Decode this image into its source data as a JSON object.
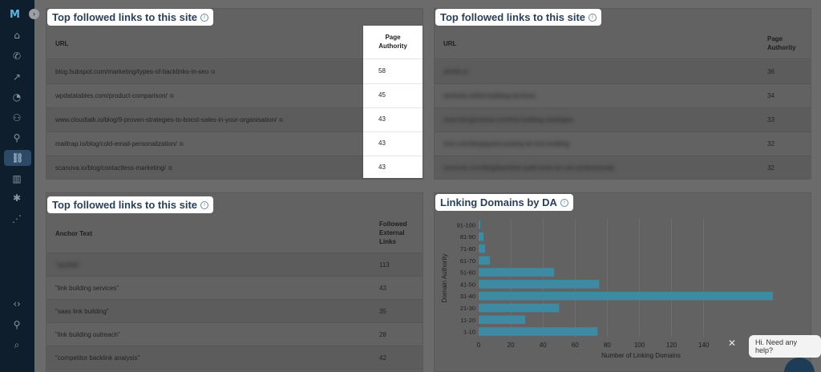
{
  "app": {
    "logo": "M",
    "collapse_symbol": "›"
  },
  "sidebar": {
    "icons": [
      {
        "name": "home-icon",
        "glyph": "⌂",
        "badge": false
      },
      {
        "name": "megaphone-icon",
        "glyph": "✆",
        "badge": true
      },
      {
        "name": "trend-icon",
        "glyph": "↗",
        "badge": false
      },
      {
        "name": "pie-chart-icon",
        "glyph": "◔",
        "badge": false
      },
      {
        "name": "users-icon",
        "glyph": "⚇",
        "badge": false
      },
      {
        "name": "search-zoom-icon",
        "glyph": "⚲",
        "badge": false
      },
      {
        "name": "link-icon",
        "glyph": "⛓",
        "badge": false,
        "active": true
      },
      {
        "name": "bar-chart-icon",
        "glyph": "▥",
        "badge": true
      },
      {
        "name": "bug-icon",
        "glyph": "✱",
        "badge": true
      },
      {
        "name": "signal-icon",
        "glyph": "⋰",
        "badge": true
      },
      {
        "name": "code-icon",
        "glyph": "‹›",
        "badge": true
      },
      {
        "name": "location-pin-icon",
        "glyph": "⚲",
        "badge": false
      },
      {
        "name": "search-icon",
        "glyph": "⌕",
        "badge": false
      }
    ]
  },
  "card1": {
    "title": "Top followed links to this site",
    "col_url": "URL",
    "col_pa_line1": "Page",
    "col_pa_line2": "Authority",
    "rows": [
      {
        "url": "blog.hubspot.com/marketing/types-of-backlinks-in-seo",
        "pa": "58"
      },
      {
        "url": "wpdatatables.com/product-comparison/",
        "pa": "45"
      },
      {
        "url": "www.cloudtalk.io/blog/9-proven-strategies-to-boost-sales-in-your-organisation/",
        "pa": "43"
      },
      {
        "url": "mailtrap.io/blog/cold-email-personalization/",
        "pa": "43"
      },
      {
        "url": "scanova.io/blog/contactless-marketing/",
        "pa": "43"
      }
    ]
  },
  "card2": {
    "title": "Top followed links to this site",
    "col_url": "URL",
    "col_pa_line1": "Page",
    "col_pa_line2": "Authority",
    "rows": [
      {
        "url": "ahrefs.io",
        "pa": "36"
      },
      {
        "url": "seotools.io/link-building-services",
        "pa": "34"
      },
      {
        "url": "searchengineland.com/link-building-strategies",
        "pa": "33"
      },
      {
        "url": "moz.com/blog/guest-posting-for-link-building",
        "pa": "32"
      },
      {
        "url": "semrush.com/blog/backlink-audit-tools-for-seo-professionals",
        "pa": "32"
      }
    ]
  },
  "card3": {
    "title": "Top followed links to this site",
    "col_anchor": "Anchor Text",
    "col_links_line1": "Followed",
    "col_links_line2": "External",
    "col_links_line3": "Links",
    "rows": [
      {
        "anchor": "\"spotlak\"",
        "links": "113",
        "blurred": true
      },
      {
        "anchor": "\"link building services\"",
        "links": "43",
        "blurred": false
      },
      {
        "anchor": "\"saas link building\"",
        "links": "35",
        "blurred": false
      },
      {
        "anchor": "\"link building outreach\"",
        "links": "28",
        "blurred": false
      },
      {
        "anchor": "\"competitor backlink analysis\"",
        "links": "42",
        "blurred": false
      }
    ]
  },
  "card4": {
    "title": "Linking Domains by DA"
  },
  "chart_data": {
    "type": "bar",
    "orientation": "horizontal",
    "title": "Linking Domains by DA",
    "xlabel": "Number of Linking Domains",
    "ylabel": "Domain Authority",
    "categories": [
      "91-100",
      "81-90",
      "71-80",
      "61-70",
      "51-60",
      "41-50",
      "31-40",
      "21-30",
      "11-20",
      "1-10"
    ],
    "values": [
      1,
      3,
      4,
      7,
      47,
      75,
      183,
      50,
      29,
      74
    ],
    "xlim": [
      0,
      180
    ],
    "xticks": [
      "0",
      "20",
      "40",
      "60",
      "80",
      "100",
      "120",
      "140"
    ],
    "grid": true,
    "bar_color": "#3e8aa3"
  },
  "help": {
    "text": "Hi. Need any help?",
    "close": "✕"
  }
}
